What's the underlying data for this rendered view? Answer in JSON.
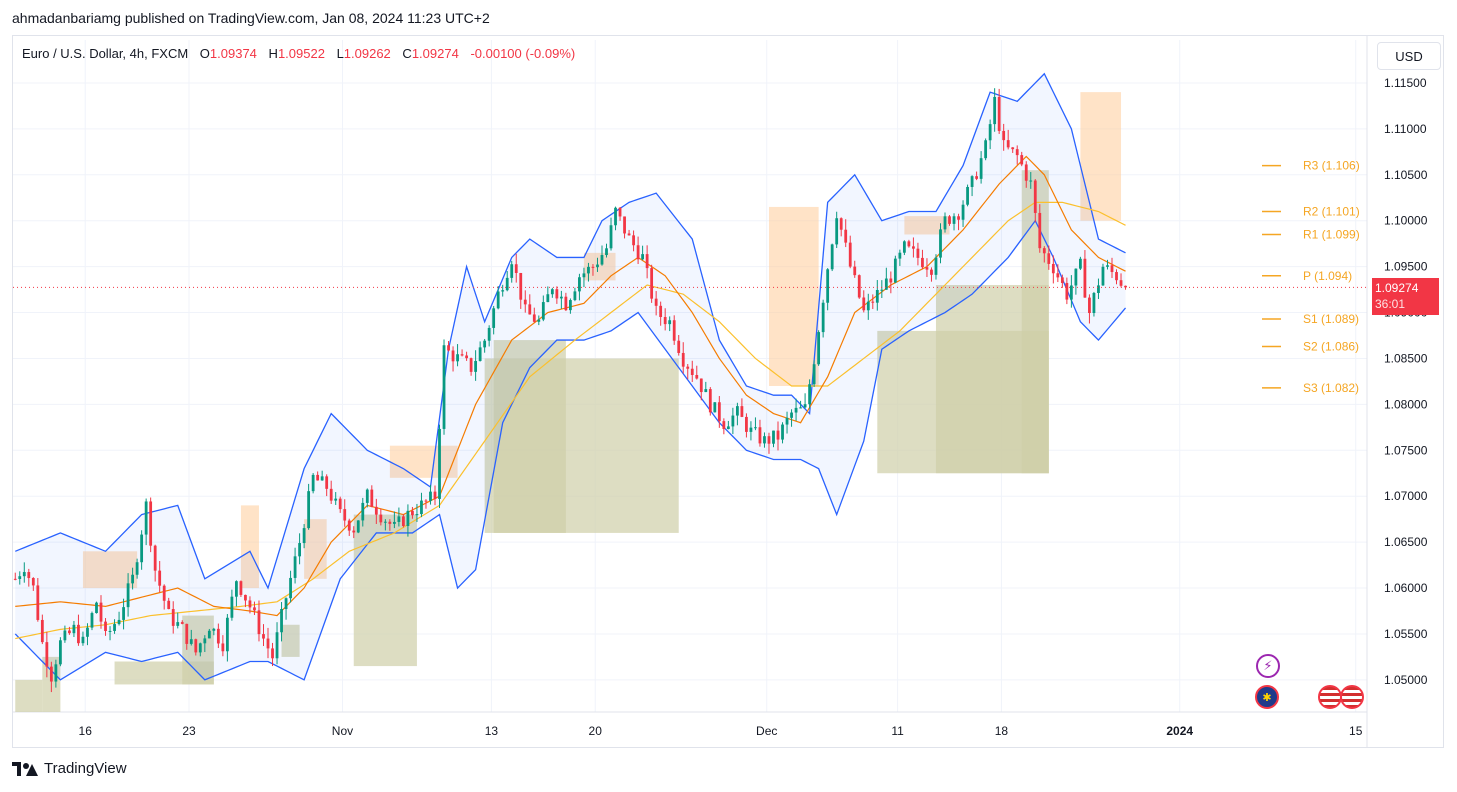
{
  "header": {
    "published": "ahmadanbariamg published on TradingView.com, Jan 08, 2024 11:23 UTC+2"
  },
  "legend": {
    "symbol": "Euro / U.S. Dollar, 4h, FXCM",
    "o_label": "O",
    "o_value": "1.09374",
    "h_label": "H",
    "h_value": "1.09522",
    "l_label": "L",
    "l_value": "1.09262",
    "c_label": "C",
    "c_value": "1.09274",
    "change": "-0.00100 (-0.09%)"
  },
  "currency_button": "USD",
  "price_tag": {
    "price": "1.09274",
    "countdown": "36:01"
  },
  "footer": {
    "brand": "TradingView"
  },
  "colors": {
    "up": "#089981",
    "down": "#f23645",
    "bb": "#2962ff",
    "ema_fast": "#f57c00",
    "ema_slow": "#fbc02d",
    "bull_box": "#cfcfa8",
    "bear_box": "#ffcc99",
    "pivot": "#f5a623"
  },
  "icons": [
    "lightning-icon",
    "eu-flag-icon",
    "us-flag-icon"
  ],
  "chart_data": {
    "type": "candlestick",
    "title": "Euro / U.S. Dollar, 4h, FXCM",
    "ylim": [
      1.0465,
      1.1175
    ],
    "y_ticks": [
      "1.11500",
      "1.11000",
      "1.10500",
      "1.10000",
      "1.09500",
      "1.09000",
      "1.08500",
      "1.08000",
      "1.07500",
      "1.07000",
      "1.06500",
      "1.06000",
      "1.05500",
      "1.05000"
    ],
    "x_ticks": [
      "16",
      "23",
      "Nov",
      "13",
      "20",
      "Dec",
      "11",
      "18",
      "2024",
      "15"
    ],
    "x_tick_bold": [
      "2024"
    ],
    "current_price": 1.09274,
    "pivots": [
      {
        "label": "R3 (1.106)",
        "value": 1.106
      },
      {
        "label": "R2 (1.101)",
        "value": 1.101
      },
      {
        "label": "R1 (1.099)",
        "value": 1.0985
      },
      {
        "label": "P (1.094)",
        "value": 1.094
      },
      {
        "label": "S1 (1.089)",
        "value": 1.0893
      },
      {
        "label": "S2 (1.086)",
        "value": 1.0863
      },
      {
        "label": "S3 (1.082)",
        "value": 1.0818
      }
    ],
    "price_path": [
      [
        0,
        1.061
      ],
      [
        2,
        1.0625
      ],
      [
        4,
        1.06
      ],
      [
        6,
        1.054
      ],
      [
        8,
        1.0505
      ],
      [
        10,
        1.054
      ],
      [
        13,
        1.0555
      ],
      [
        15,
        1.054
      ],
      [
        18,
        1.0585
      ],
      [
        20,
        1.0545
      ],
      [
        23,
        1.057
      ],
      [
        26,
        1.061
      ],
      [
        29,
        1.069
      ],
      [
        31,
        1.062
      ],
      [
        34,
        1.057
      ],
      [
        37,
        1.0555
      ],
      [
        40,
        1.053
      ],
      [
        43,
        1.056
      ],
      [
        46,
        1.054
      ],
      [
        49,
        1.061
      ],
      [
        52,
        1.058
      ],
      [
        55,
        1.0545
      ],
      [
        57,
        1.0525
      ],
      [
        60,
        1.059
      ],
      [
        63,
        1.065
      ],
      [
        66,
        1.072
      ],
      [
        69,
        1.071
      ],
      [
        72,
        1.068
      ],
      [
        75,
        1.0665
      ],
      [
        78,
        1.07
      ],
      [
        81,
        1.068
      ],
      [
        84,
        1.0665
      ],
      [
        87,
        1.068
      ],
      [
        90,
        1.069
      ],
      [
        93,
        1.07
      ],
      [
        95,
        1.086
      ],
      [
        98,
        1.085
      ],
      [
        101,
        1.084
      ],
      [
        104,
        1.087
      ],
      [
        107,
        1.092
      ],
      [
        110,
        1.096
      ],
      [
        113,
        1.09
      ],
      [
        116,
        1.089
      ],
      [
        119,
        1.093
      ],
      [
        122,
        1.091
      ],
      [
        125,
        1.094
      ],
      [
        128,
        1.095
      ],
      [
        131,
        1.097
      ],
      [
        133,
        1.101
      ],
      [
        136,
        1.098
      ],
      [
        139,
        1.096
      ],
      [
        142,
        1.09
      ],
      [
        145,
        1.089
      ],
      [
        148,
        1.085
      ],
      [
        151,
        1.083
      ],
      [
        154,
        1.08
      ],
      [
        157,
        1.078
      ],
      [
        160,
        1.079
      ],
      [
        163,
        1.077
      ],
      [
        166,
        1.076
      ],
      [
        169,
        1.0765
      ],
      [
        172,
        1.079
      ],
      [
        175,
        1.0795
      ],
      [
        177,
        1.085
      ],
      [
        180,
        1.095
      ],
      [
        182,
        1.101
      ],
      [
        185,
        1.095
      ],
      [
        188,
        1.09
      ],
      [
        191,
        1.092
      ],
      [
        194,
        1.094
      ],
      [
        197,
        1.097
      ],
      [
        200,
        1.096
      ],
      [
        203,
        1.095
      ],
      [
        206,
        1.1
      ],
      [
        209,
        1.101
      ],
      [
        212,
        1.104
      ],
      [
        215,
        1.108
      ],
      [
        217,
        1.113
      ],
      [
        219,
        1.108
      ],
      [
        222,
        1.107
      ],
      [
        225,
        1.104
      ],
      [
        227,
        1.097
      ],
      [
        230,
        1.095
      ],
      [
        233,
        1.092
      ],
      [
        236,
        1.095
      ],
      [
        238,
        1.09
      ],
      [
        241,
        1.095
      ],
      [
        244,
        1.094
      ],
      [
        246,
        1.0927
      ]
    ],
    "bollinger": {
      "upper": [
        [
          0,
          1.064
        ],
        [
          10,
          1.066
        ],
        [
          20,
          1.064
        ],
        [
          28,
          1.068
        ],
        [
          36,
          1.069
        ],
        [
          42,
          1.061
        ],
        [
          52,
          1.064
        ],
        [
          56,
          1.06
        ],
        [
          64,
          1.073
        ],
        [
          70,
          1.079
        ],
        [
          78,
          1.075
        ],
        [
          86,
          1.073
        ],
        [
          92,
          1.071
        ],
        [
          96,
          1.086
        ],
        [
          100,
          1.095
        ],
        [
          104,
          1.089
        ],
        [
          110,
          1.096
        ],
        [
          114,
          1.098
        ],
        [
          120,
          1.096
        ],
        [
          126,
          1.096
        ],
        [
          130,
          1.1
        ],
        [
          136,
          1.102
        ],
        [
          142,
          1.103
        ],
        [
          150,
          1.098
        ],
        [
          156,
          1.087
        ],
        [
          162,
          1.082
        ],
        [
          168,
          1.081
        ],
        [
          172,
          1.081
        ],
        [
          176,
          1.079
        ],
        [
          180,
          1.102
        ],
        [
          186,
          1.105
        ],
        [
          192,
          1.1
        ],
        [
          198,
          1.101
        ],
        [
          204,
          1.101
        ],
        [
          210,
          1.106
        ],
        [
          216,
          1.114
        ],
        [
          222,
          1.113
        ],
        [
          228,
          1.116
        ],
        [
          234,
          1.11
        ],
        [
          240,
          1.098
        ],
        [
          246,
          1.0965
        ]
      ],
      "lower": [
        [
          0,
          1.055
        ],
        [
          10,
          1.05
        ],
        [
          20,
          1.053
        ],
        [
          28,
          1.052
        ],
        [
          36,
          1.053
        ],
        [
          42,
          1.05
        ],
        [
          52,
          1.052
        ],
        [
          56,
          1.052
        ],
        [
          64,
          1.05
        ],
        [
          72,
          1.061
        ],
        [
          80,
          1.066
        ],
        [
          88,
          1.066
        ],
        [
          94,
          1.068
        ],
        [
          98,
          1.06
        ],
        [
          102,
          1.062
        ],
        [
          108,
          1.078
        ],
        [
          114,
          1.084
        ],
        [
          120,
          1.087
        ],
        [
          126,
          1.087
        ],
        [
          132,
          1.088
        ],
        [
          138,
          1.09
        ],
        [
          144,
          1.086
        ],
        [
          150,
          1.082
        ],
        [
          156,
          1.078
        ],
        [
          162,
          1.075
        ],
        [
          168,
          1.074
        ],
        [
          174,
          1.074
        ],
        [
          178,
          1.073
        ],
        [
          182,
          1.068
        ],
        [
          188,
          1.076
        ],
        [
          192,
          1.086
        ],
        [
          198,
          1.088
        ],
        [
          206,
          1.09
        ],
        [
          212,
          1.092
        ],
        [
          220,
          1.096
        ],
        [
          226,
          1.1
        ],
        [
          230,
          1.096
        ],
        [
          236,
          1.089
        ],
        [
          240,
          1.087
        ],
        [
          246,
          1.0905
        ]
      ]
    },
    "ema_fast": [
      [
        0,
        1.058
      ],
      [
        10,
        1.0585
      ],
      [
        20,
        1.058
      ],
      [
        28,
        1.059
      ],
      [
        36,
        1.06
      ],
      [
        44,
        1.058
      ],
      [
        52,
        1.0575
      ],
      [
        58,
        1.057
      ],
      [
        64,
        1.06
      ],
      [
        70,
        1.065
      ],
      [
        78,
        1.069
      ],
      [
        86,
        1.068
      ],
      [
        94,
        1.07
      ],
      [
        102,
        1.08
      ],
      [
        110,
        1.087
      ],
      [
        118,
        1.09
      ],
      [
        126,
        1.091
      ],
      [
        132,
        1.094
      ],
      [
        138,
        1.096
      ],
      [
        144,
        1.094
      ],
      [
        150,
        1.09
      ],
      [
        156,
        1.085
      ],
      [
        162,
        1.081
      ],
      [
        168,
        1.079
      ],
      [
        174,
        1.078
      ],
      [
        180,
        1.083
      ],
      [
        186,
        1.09
      ],
      [
        194,
        1.093
      ],
      [
        202,
        1.095
      ],
      [
        210,
        1.099
      ],
      [
        218,
        1.104
      ],
      [
        224,
        1.107
      ],
      [
        228,
        1.105
      ],
      [
        234,
        1.099
      ],
      [
        240,
        1.096
      ],
      [
        246,
        1.0945
      ]
    ],
    "ema_slow": [
      [
        0,
        1.0545
      ],
      [
        10,
        1.0555
      ],
      [
        20,
        1.056
      ],
      [
        30,
        1.057
      ],
      [
        40,
        1.0575
      ],
      [
        50,
        1.058
      ],
      [
        58,
        1.0585
      ],
      [
        66,
        1.061
      ],
      [
        74,
        1.064
      ],
      [
        84,
        1.066
      ],
      [
        94,
        1.069
      ],
      [
        104,
        1.076
      ],
      [
        114,
        1.083
      ],
      [
        124,
        1.087
      ],
      [
        132,
        1.09
      ],
      [
        140,
        1.093
      ],
      [
        148,
        1.092
      ],
      [
        156,
        1.089
      ],
      [
        164,
        1.085
      ],
      [
        172,
        1.082
      ],
      [
        180,
        1.082
      ],
      [
        188,
        1.085
      ],
      [
        196,
        1.088
      ],
      [
        204,
        1.092
      ],
      [
        212,
        1.096
      ],
      [
        220,
        1.1
      ],
      [
        226,
        1.102
      ],
      [
        232,
        1.102
      ],
      [
        240,
        1.101
      ],
      [
        246,
        1.0995
      ]
    ],
    "zones": [
      {
        "kind": "bull",
        "x0": 0,
        "x1": 6,
        "top": 1.05,
        "bottom": 1.0465
      },
      {
        "kind": "bull",
        "x0": 6,
        "x1": 10,
        "top": 1.0525,
        "bottom": 1.0465
      },
      {
        "kind": "bull",
        "x0": 22,
        "x1": 44,
        "top": 1.052,
        "bottom": 1.0495
      },
      {
        "kind": "bull",
        "x0": 37,
        "x1": 44,
        "top": 1.057,
        "bottom": 1.0495
      },
      {
        "kind": "bull",
        "x0": 59,
        "x1": 63,
        "top": 1.056,
        "bottom": 1.0525
      },
      {
        "kind": "bull",
        "x0": 75,
        "x1": 89,
        "top": 1.068,
        "bottom": 1.0515
      },
      {
        "kind": "bull",
        "x0": 104,
        "x1": 147,
        "top": 1.085,
        "bottom": 1.066
      },
      {
        "kind": "bull",
        "x0": 106,
        "x1": 122,
        "top": 1.087,
        "bottom": 1.066
      },
      {
        "kind": "bull",
        "x0": 191,
        "x1": 229,
        "top": 1.088,
        "bottom": 1.0725
      },
      {
        "kind": "bull",
        "x0": 204,
        "x1": 229,
        "top": 1.093,
        "bottom": 1.0725
      },
      {
        "kind": "bull",
        "x0": 223,
        "x1": 229,
        "top": 1.1055,
        "bottom": 1.0725
      },
      {
        "kind": "bear",
        "x0": 15,
        "x1": 27,
        "top": 1.064,
        "bottom": 1.06
      },
      {
        "kind": "bear",
        "x0": 50,
        "x1": 54,
        "top": 1.069,
        "bottom": 1.06
      },
      {
        "kind": "bear",
        "x0": 64,
        "x1": 69,
        "top": 1.0675,
        "bottom": 1.061
      },
      {
        "kind": "bear",
        "x0": 83,
        "x1": 98,
        "top": 1.0755,
        "bottom": 1.072
      },
      {
        "kind": "bear",
        "x0": 126,
        "x1": 133,
        "top": 1.0965,
        "bottom": 1.0935
      },
      {
        "kind": "bear",
        "x0": 167,
        "x1": 178,
        "top": 1.1015,
        "bottom": 1.082
      },
      {
        "kind": "bear",
        "x0": 197,
        "x1": 207,
        "top": 1.1005,
        "bottom": 1.0985
      },
      {
        "kind": "bear",
        "x0": 236,
        "x1": 245,
        "top": 1.114,
        "bottom": 1.1
      }
    ]
  }
}
